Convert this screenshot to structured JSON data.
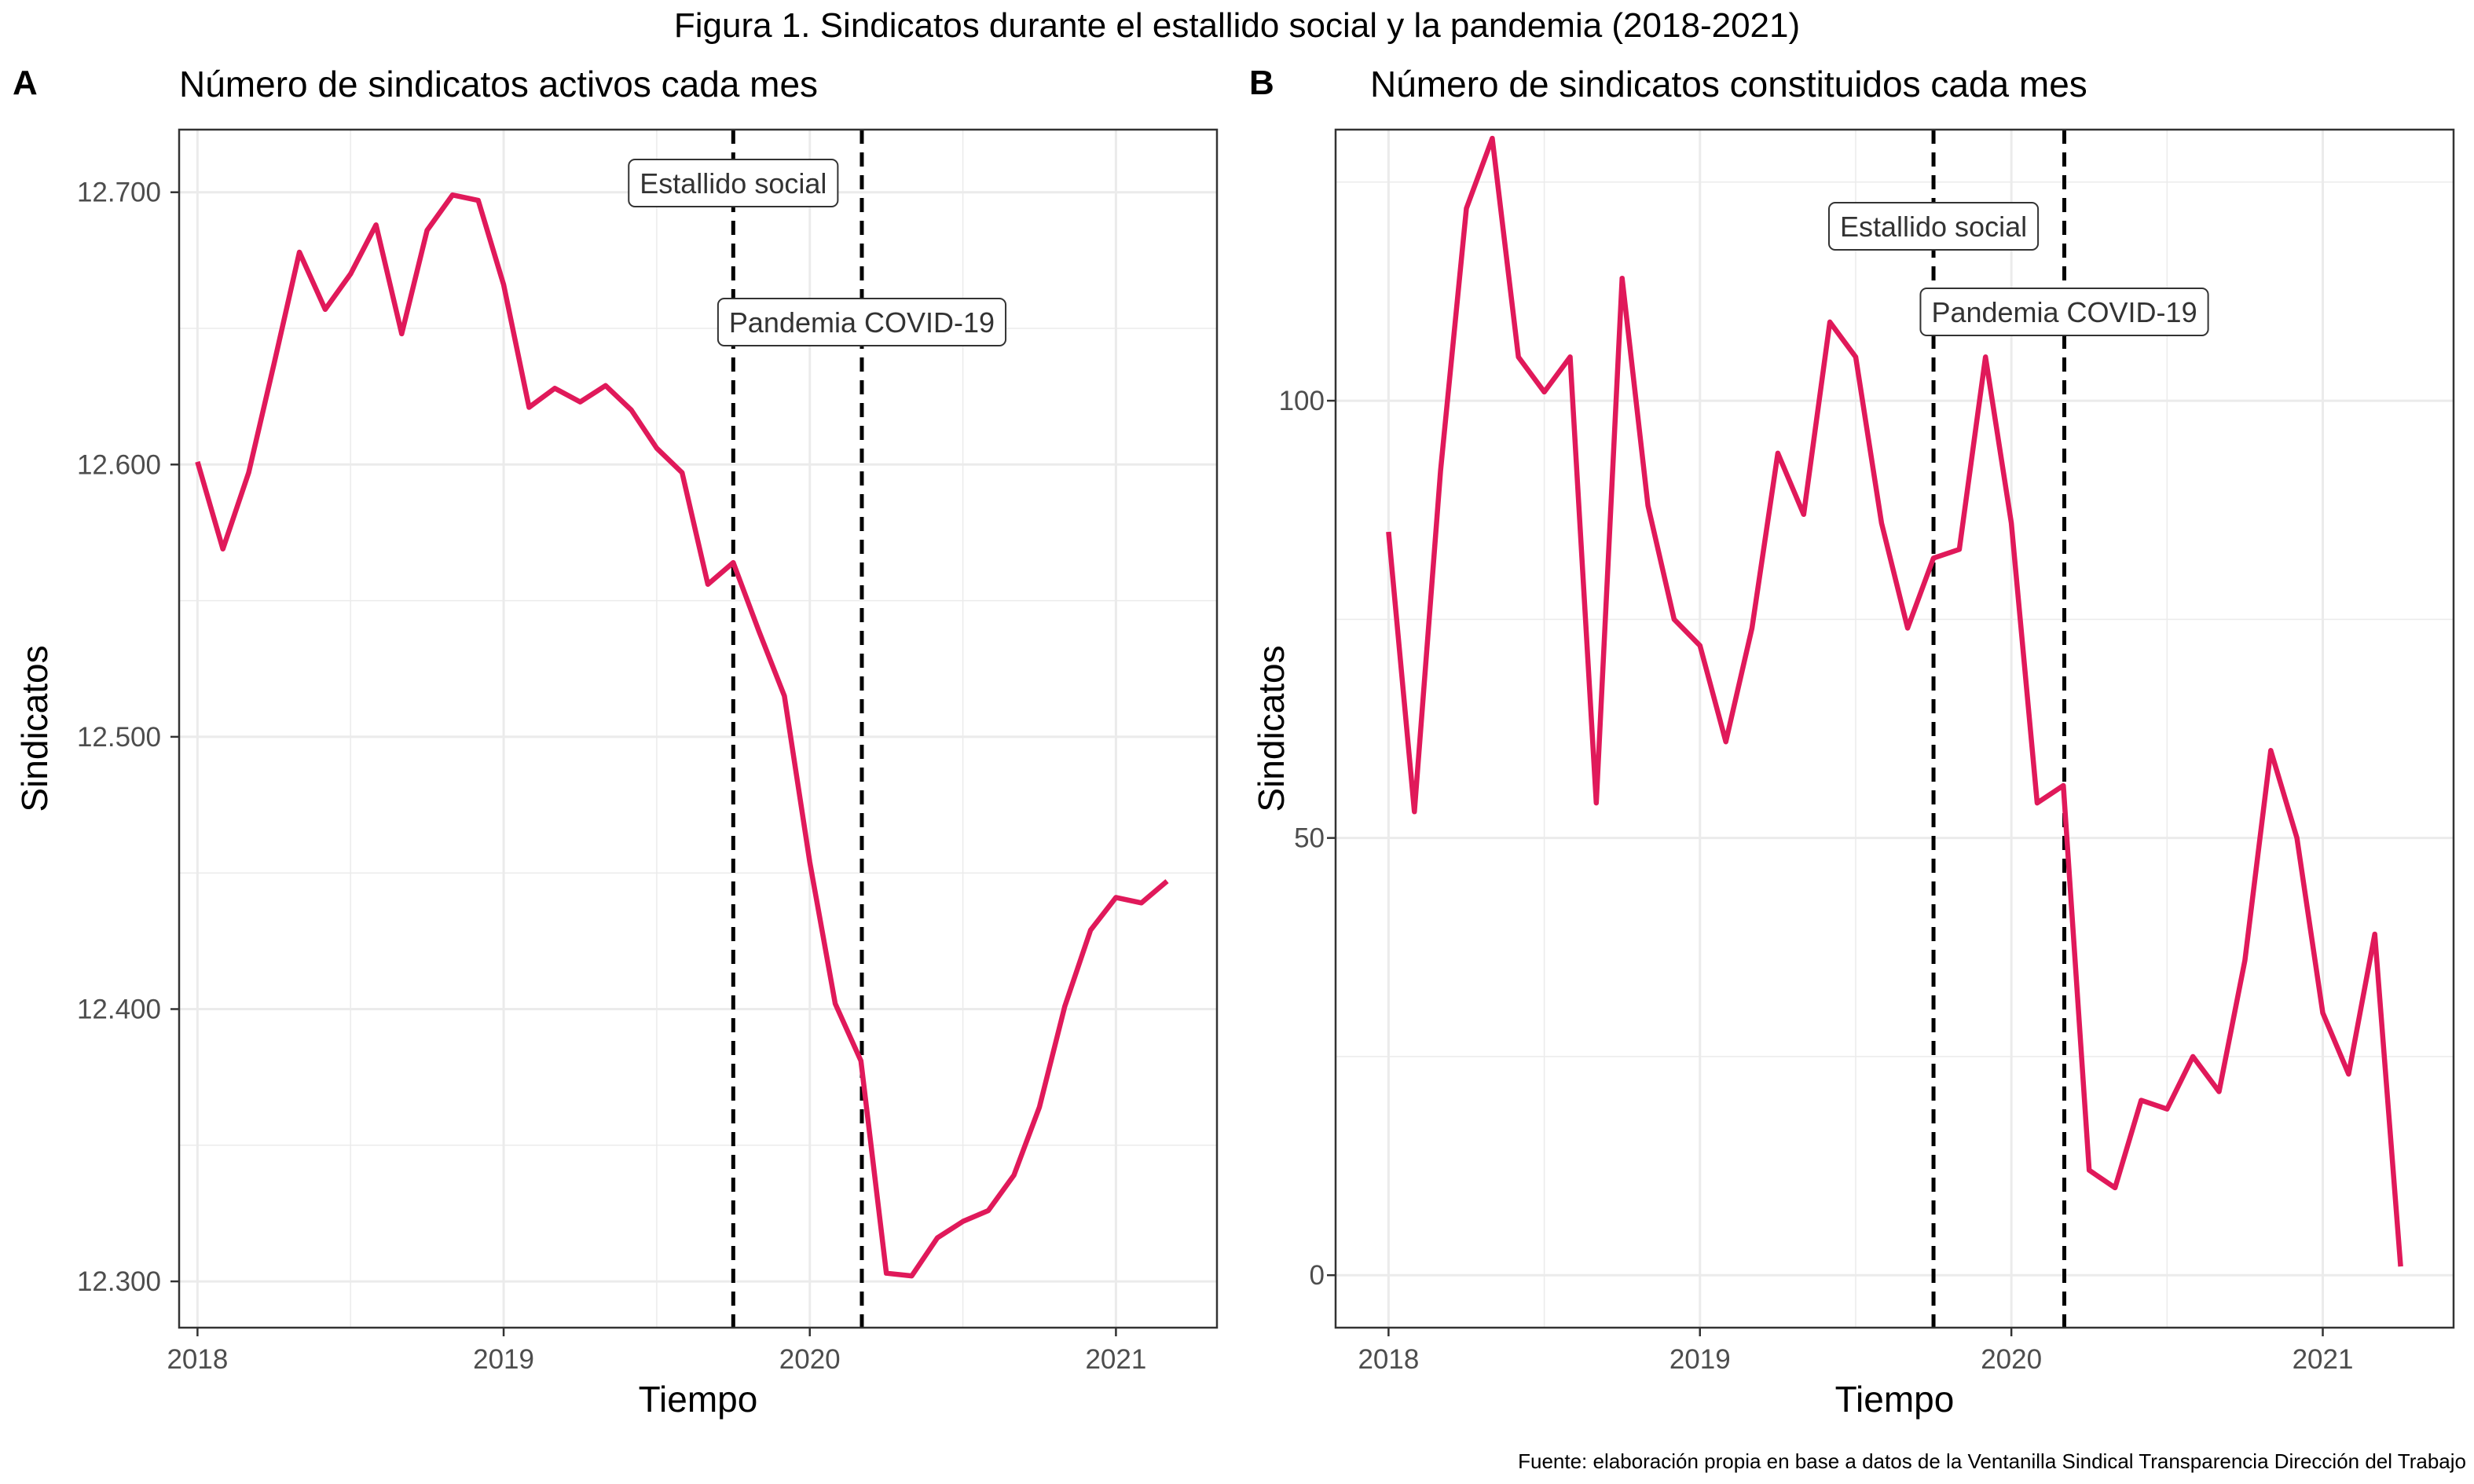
{
  "figure_title": "Figura 1. Sindicatos durante el estallido social y la pandemia (2018-2021)",
  "footer_note": "Fuente: elaboración propia en base a datos de la Ventanilla Sindical Transparencia Dirección del Trabajo",
  "colors": {
    "line": "#E0195A",
    "grid": "#EBEBEB",
    "panel_border": "#333333",
    "vline": "#000000"
  },
  "chart_data": [
    {
      "type": "line",
      "tag": "A",
      "title": "Número de sindicatos activos cada mes",
      "xlabel": "Tiempo",
      "ylabel": "Sindicatos",
      "xlim": [
        2017.94,
        2021.33
      ],
      "ylim": [
        12283,
        12723
      ],
      "x_ticks": [
        2018,
        2019,
        2020,
        2021
      ],
      "x_tick_labels": [
        "2018",
        "2019",
        "2020",
        "2021"
      ],
      "y_ticks": [
        12300,
        12400,
        12500,
        12600,
        12700
      ],
      "y_tick_labels": [
        "12.300",
        "12.400",
        "12.500",
        "12.600",
        "12.700"
      ],
      "grid": true,
      "events": [
        {
          "x": 2019.75,
          "label": "Estallido social"
        },
        {
          "x": 2020.17,
          "label": "Pandemia COVID-19"
        }
      ],
      "series": [
        {
          "x": [
            2018.0,
            2018.083,
            2018.167,
            2018.25,
            2018.333,
            2018.417,
            2018.5,
            2018.583,
            2018.667,
            2018.75,
            2018.833,
            2018.917,
            2019.0,
            2019.083,
            2019.167,
            2019.25,
            2019.333,
            2019.417,
            2019.5,
            2019.583,
            2019.667,
            2019.75,
            2019.833,
            2019.917,
            2020.0,
            2020.083,
            2020.167,
            2020.25,
            2020.333,
            2020.417,
            2020.5,
            2020.583,
            2020.667,
            2020.75,
            2020.833,
            2020.917,
            2021.0,
            2021.083,
            2021.167
          ],
          "values": [
            12601,
            12569,
            12597,
            12637,
            12678,
            12657,
            12670,
            12688,
            12648,
            12686,
            12699,
            12697,
            12666,
            12621,
            12628,
            12623,
            12629,
            12620,
            12606,
            12597,
            12556,
            12564,
            12539,
            12515,
            12454,
            12402,
            12381,
            12303,
            12302,
            12316,
            12322,
            12326,
            12339,
            12364,
            12401,
            12429,
            12441,
            12439,
            12447
          ]
        }
      ]
    },
    {
      "type": "line",
      "tag": "B",
      "title": "Número de sindicatos constituidos cada mes",
      "xlabel": "Tiempo",
      "ylabel": "Sindicatos",
      "xlim": [
        2017.83,
        2021.42
      ],
      "ylim": [
        -6,
        131
      ],
      "x_ticks": [
        2018,
        2019,
        2020,
        2021
      ],
      "x_tick_labels": [
        "2018",
        "2019",
        "2020",
        "2021"
      ],
      "y_ticks": [
        0,
        50,
        100
      ],
      "y_tick_labels": [
        "0",
        "50",
        "100"
      ],
      "grid": true,
      "events": [
        {
          "x": 2019.75,
          "label": "Estallido social"
        },
        {
          "x": 2020.17,
          "label": "Pandemia COVID-19"
        }
      ],
      "series": [
        {
          "x": [
            2018.0,
            2018.083,
            2018.167,
            2018.25,
            2018.333,
            2018.417,
            2018.5,
            2018.583,
            2018.667,
            2018.75,
            2018.833,
            2018.917,
            2019.0,
            2019.083,
            2019.167,
            2019.25,
            2019.333,
            2019.417,
            2019.5,
            2019.583,
            2019.667,
            2019.75,
            2019.833,
            2019.917,
            2020.0,
            2020.083,
            2020.167,
            2020.25,
            2020.333,
            2020.417,
            2020.5,
            2020.583,
            2020.667,
            2020.75,
            2020.833,
            2020.917,
            2021.0,
            2021.083,
            2021.167,
            2021.25
          ],
          "values": [
            85,
            53,
            92,
            122,
            130,
            105,
            101,
            105,
            54,
            114,
            88,
            75,
            72,
            61,
            74,
            94,
            87,
            109,
            105,
            86,
            74,
            82,
            83,
            105,
            86,
            54,
            56,
            12,
            10,
            20,
            19,
            25,
            21,
            36,
            60,
            50,
            30,
            23,
            39,
            1
          ]
        }
      ]
    }
  ]
}
